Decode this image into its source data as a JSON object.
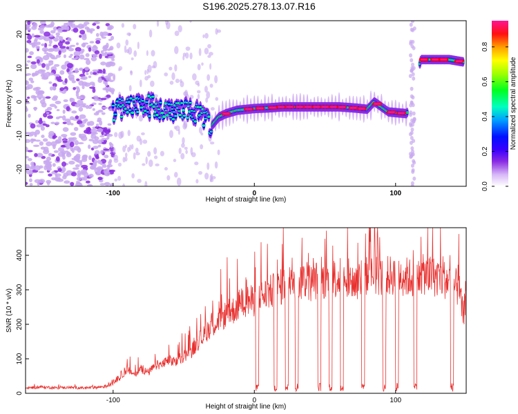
{
  "title": "S196.2025.278.13.07.R16",
  "colors": {
    "snr_line": "#e8302e",
    "axis": "#000000",
    "background": "#ffffff"
  },
  "colormap": [
    "#ffffff",
    "#c8a8f0",
    "#8a2be2",
    "#5a00ff",
    "#0000ff",
    "#00c8ff",
    "#00ff80",
    "#00ff00",
    "#c8ff00",
    "#ffff00",
    "#ffa000",
    "#ff0000",
    "#ff1493"
  ],
  "chart_data": [
    {
      "type": "heatmap",
      "title": "",
      "xlabel": "Height of straight line (km)",
      "ylabel": "Frequency (Hz)",
      "xlim": [
        -162,
        150
      ],
      "ylim": [
        -25,
        24
      ],
      "x_ticks": [
        {
          "value": -100,
          "label": "-100"
        },
        {
          "value": 0,
          "label": "0"
        },
        {
          "value": 100,
          "label": "100"
        }
      ],
      "y_ticks": [
        {
          "value": -20,
          "label": "-20"
        },
        {
          "value": -10,
          "label": "-10"
        },
        {
          "value": 0,
          "label": "0"
        },
        {
          "value": 10,
          "label": "10"
        },
        {
          "value": 20,
          "label": "20"
        }
      ],
      "colorbar": {
        "label": "Normalized spectral amplitude",
        "range": [
          0.0,
          0.95
        ],
        "ticks": [
          "0.0",
          "0.2",
          "0.4",
          "0.6",
          "0.8"
        ]
      },
      "ridge": [
        {
          "x": -100,
          "y": -2.5
        },
        {
          "x": -90,
          "y": -1.5
        },
        {
          "x": -80,
          "y": -1
        },
        {
          "x": -70,
          "y": -1.5
        },
        {
          "x": -60,
          "y": -3
        },
        {
          "x": -50,
          "y": -3
        },
        {
          "x": -42,
          "y": -3
        },
        {
          "x": -35,
          "y": -5.5
        },
        {
          "x": -30,
          "y": -7
        },
        {
          "x": -25,
          "y": -4.5
        },
        {
          "x": -20,
          "y": -3.5
        },
        {
          "x": -12,
          "y": -2.5
        },
        {
          "x": 0,
          "y": -2
        },
        {
          "x": 10,
          "y": -1.8
        },
        {
          "x": 20,
          "y": -1.5
        },
        {
          "x": 30,
          "y": -1.5
        },
        {
          "x": 40,
          "y": -1.5
        },
        {
          "x": 50,
          "y": -1.5
        },
        {
          "x": 60,
          "y": -1.5
        },
        {
          "x": 70,
          "y": -1.8
        },
        {
          "x": 80,
          "y": -2.2
        },
        {
          "x": 85,
          "y": 0
        },
        {
          "x": 90,
          "y": -1.5
        },
        {
          "x": 95,
          "y": -3
        },
        {
          "x": 100,
          "y": -3.2
        },
        {
          "x": 108,
          "y": -3.5
        },
        {
          "x": 118,
          "y": 12.5
        },
        {
          "x": 128,
          "y": 12.5
        },
        {
          "x": 138,
          "y": 12.5
        },
        {
          "x": 148,
          "y": 11.8
        }
      ]
    },
    {
      "type": "line",
      "title": "",
      "xlabel": "Height of straight line (km)",
      "ylabel": "SNR (10 * v/v)",
      "xlim": [
        -162,
        150
      ],
      "ylim": [
        0,
        480
      ],
      "x_ticks": [
        {
          "value": -100,
          "label": "-100"
        },
        {
          "value": 0,
          "label": "0"
        },
        {
          "value": 100,
          "label": "100"
        }
      ],
      "y_ticks": [
        {
          "value": 0,
          "label": "0"
        },
        {
          "value": 100,
          "label": "100"
        },
        {
          "value": 200,
          "label": "200"
        },
        {
          "value": 300,
          "label": "300"
        },
        {
          "value": 400,
          "label": "400"
        }
      ],
      "series": [
        {
          "name": "SNR",
          "x": [
            -162,
            -150,
            -140,
            -130,
            -120,
            -110,
            -105,
            -100,
            -95,
            -90,
            -85,
            -80,
            -75,
            -70,
            -65,
            -60,
            -55,
            -50,
            -45,
            -40,
            -35,
            -30,
            -25,
            -20,
            -15,
            -10,
            -5,
            0,
            5,
            10,
            15,
            20,
            25,
            30,
            35,
            40,
            45,
            50,
            55,
            60,
            65,
            70,
            75,
            80,
            85,
            90,
            95,
            100,
            105,
            110,
            115,
            120,
            125,
            130,
            135,
            140,
            145,
            148,
            150
          ],
          "values": [
            15,
            18,
            16,
            17,
            15,
            18,
            20,
            30,
            45,
            70,
            55,
            70,
            60,
            80,
            85,
            95,
            90,
            110,
            120,
            150,
            170,
            200,
            210,
            230,
            240,
            260,
            270,
            265,
            280,
            290,
            300,
            310,
            320,
            320,
            330,
            320,
            330,
            325,
            330,
            335,
            340,
            320,
            330,
            340,
            350,
            335,
            340,
            345,
            340,
            335,
            330,
            345,
            340,
            335,
            330,
            320,
            300,
            220,
            300
          ],
          "dropouts": [
            2,
            15,
            23,
            30,
            46,
            54,
            62,
            77,
            92,
            101,
            114,
            140
          ]
        }
      ]
    }
  ]
}
